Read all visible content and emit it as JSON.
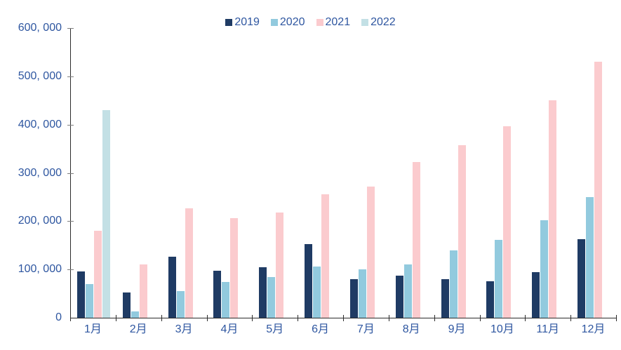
{
  "chart_data": {
    "type": "bar",
    "title": "",
    "xlabel": "",
    "ylabel": "",
    "categories": [
      "1月",
      "2月",
      "3月",
      "4月",
      "5月",
      "6月",
      "7月",
      "8月",
      "9月",
      "10月",
      "11月",
      "12月"
    ],
    "series": [
      {
        "name": "2019",
        "color": "#1F3B64",
        "values": [
          96000,
          53000,
          126000,
          97000,
          105000,
          153000,
          80000,
          87000,
          80000,
          75000,
          95000,
          163000
        ]
      },
      {
        "name": "2020",
        "color": "#92CADE",
        "values": [
          70000,
          13000,
          55000,
          74000,
          84000,
          106000,
          100000,
          110000,
          139000,
          162000,
          202000,
          250000
        ]
      },
      {
        "name": "2021",
        "color": "#FBCBCE",
        "values": [
          180000,
          110000,
          226000,
          206000,
          218000,
          256000,
          271000,
          322000,
          358000,
          397000,
          450000,
          530000
        ]
      },
      {
        "name": "2022",
        "color": "#C3E0E5",
        "values": [
          430000,
          null,
          null,
          null,
          null,
          null,
          null,
          null,
          null,
          null,
          null,
          null
        ]
      }
    ],
    "ylim": [
      0,
      600000
    ],
    "y_tick_labels": [
      "0",
      "100, 000",
      "200, 000",
      "300, 000",
      "400, 000",
      "500, 000",
      "600, 000"
    ],
    "legend_position": "top",
    "grid": false,
    "colors": {
      "axis_line": "#2b2b2b",
      "y_tick": "#7f7f7f",
      "label_text": "#2E56A0"
    }
  }
}
